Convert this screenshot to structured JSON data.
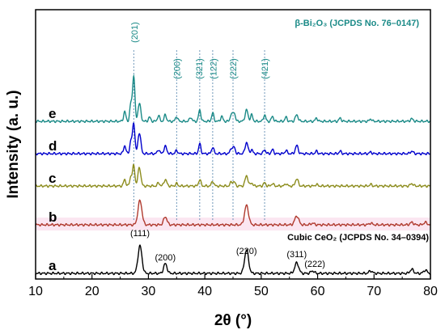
{
  "chart_data": {
    "type": "line",
    "xlabel": "2θ (°)",
    "ylabel": "Intensity (a. u.)",
    "xlim": [
      10,
      80
    ],
    "xticks": [
      10,
      20,
      30,
      40,
      50,
      60,
      70,
      80
    ],
    "grid": false,
    "series": [
      {
        "name": "a",
        "color": "#000000",
        "baseline": 0,
        "peaks": [
          [
            28.5,
            34,
            0.35
          ],
          [
            33.0,
            12,
            0.3
          ],
          [
            47.4,
            29,
            0.35
          ],
          [
            56.3,
            13,
            0.35
          ],
          [
            59.1,
            3,
            0.3
          ],
          [
            69.4,
            3,
            0.3
          ],
          [
            76.7,
            5,
            0.3
          ],
          [
            79.1,
            4,
            0.3
          ]
        ]
      },
      {
        "name": "b",
        "color": "#b03a2e",
        "baseline": 60,
        "peaks": [
          [
            28.5,
            30,
            0.35
          ],
          [
            33.0,
            10,
            0.3
          ],
          [
            47.4,
            24,
            0.35
          ],
          [
            56.3,
            11,
            0.35
          ],
          [
            59.1,
            2,
            0.3
          ],
          [
            69.4,
            2,
            0.3
          ],
          [
            76.7,
            3,
            0.3
          ],
          [
            79.1,
            3,
            0.3
          ]
        ]
      },
      {
        "name": "c",
        "color": "#8c8c1c",
        "baseline": 108,
        "peaks": [
          [
            25.8,
            8,
            0.2
          ],
          [
            26.9,
            12,
            0.2
          ],
          [
            27.4,
            25,
            0.2
          ],
          [
            28.4,
            23,
            0.25
          ],
          [
            31.8,
            4,
            0.2
          ],
          [
            33.0,
            8,
            0.25
          ],
          [
            35.0,
            3,
            0.2
          ],
          [
            39.1,
            8,
            0.2
          ],
          [
            41.4,
            6,
            0.2
          ],
          [
            44.7,
            5,
            0.2
          ],
          [
            45.2,
            5,
            0.2
          ],
          [
            47.4,
            13,
            0.25
          ],
          [
            48.3,
            4,
            0.2
          ],
          [
            50.6,
            4,
            0.2
          ],
          [
            52.0,
            3,
            0.2
          ],
          [
            54.4,
            3,
            0.2
          ],
          [
            56.3,
            9,
            0.25
          ],
          [
            59.8,
            2,
            0.2
          ],
          [
            69.4,
            2,
            0.2
          ],
          [
            76.7,
            3,
            0.25
          ]
        ]
      },
      {
        "name": "d",
        "color": "#0000cc",
        "baseline": 148,
        "peaks": [
          [
            25.8,
            10,
            0.2
          ],
          [
            26.9,
            16,
            0.2
          ],
          [
            27.4,
            38,
            0.2
          ],
          [
            28.4,
            26,
            0.25
          ],
          [
            31.8,
            5,
            0.2
          ],
          [
            33.0,
            9,
            0.25
          ],
          [
            35.0,
            4,
            0.2
          ],
          [
            39.1,
            12,
            0.2
          ],
          [
            41.4,
            8,
            0.2
          ],
          [
            44.7,
            7,
            0.2
          ],
          [
            45.2,
            8,
            0.2
          ],
          [
            47.4,
            14,
            0.25
          ],
          [
            48.3,
            5,
            0.2
          ],
          [
            50.6,
            5,
            0.2
          ],
          [
            52.0,
            5,
            0.2
          ],
          [
            54.4,
            4,
            0.2
          ],
          [
            56.3,
            10,
            0.25
          ],
          [
            59.8,
            3,
            0.2
          ],
          [
            64.0,
            3,
            0.2
          ],
          [
            69.4,
            2,
            0.2
          ],
          [
            76.7,
            3,
            0.25
          ]
        ]
      },
      {
        "name": "e",
        "color": "#1a8a87",
        "baseline": 188,
        "peaks": [
          [
            25.8,
            12,
            0.2
          ],
          [
            26.9,
            22,
            0.2
          ],
          [
            27.4,
            56,
            0.2
          ],
          [
            28.4,
            22,
            0.25
          ],
          [
            30.2,
            5,
            0.2
          ],
          [
            31.8,
            7,
            0.2
          ],
          [
            33.0,
            8,
            0.2
          ],
          [
            35.0,
            6,
            0.2
          ],
          [
            37.5,
            5,
            0.2
          ],
          [
            39.1,
            14,
            0.2
          ],
          [
            41.4,
            10,
            0.2
          ],
          [
            43.0,
            6,
            0.2
          ],
          [
            44.7,
            9,
            0.2
          ],
          [
            45.2,
            11,
            0.2
          ],
          [
            47.4,
            14,
            0.25
          ],
          [
            48.3,
            8,
            0.2
          ],
          [
            50.6,
            8,
            0.2
          ],
          [
            52.0,
            6,
            0.2
          ],
          [
            54.4,
            5,
            0.2
          ],
          [
            56.3,
            8,
            0.25
          ],
          [
            59.8,
            4,
            0.2
          ],
          [
            64.0,
            4,
            0.2
          ],
          [
            69.4,
            3,
            0.2
          ],
          [
            76.7,
            3,
            0.25
          ]
        ]
      }
    ],
    "reference_lines": [
      27.4,
      35.0,
      39.1,
      41.4,
      45.0,
      50.6
    ],
    "references": [
      {
        "title": "β-Bi₂O₃ (JCPDS No. 76–0147)",
        "color": "#1a8a87",
        "peak_labels": [
          {
            "text": "(201)",
            "x": 27.5
          },
          {
            "text": "(200)",
            "x": 35.0
          },
          {
            "text": "(321)",
            "x": 39.0
          },
          {
            "text": "(122)",
            "x": 41.5
          },
          {
            "text": "(222)",
            "x": 45.0
          },
          {
            "text": "(421)",
            "x": 50.6
          }
        ]
      },
      {
        "title": "Cubic CeO₂ (JCPDS No. 34–0394)",
        "color": "#000000",
        "peak_labels": [
          {
            "text": "(111)",
            "x": 28.5
          },
          {
            "text": "(200)",
            "x": 33.0
          },
          {
            "text": "(220)",
            "x": 47.4
          },
          {
            "text": "(311)",
            "x": 56.3
          },
          {
            "text": "(222)",
            "x": 59.5
          }
        ]
      }
    ]
  }
}
